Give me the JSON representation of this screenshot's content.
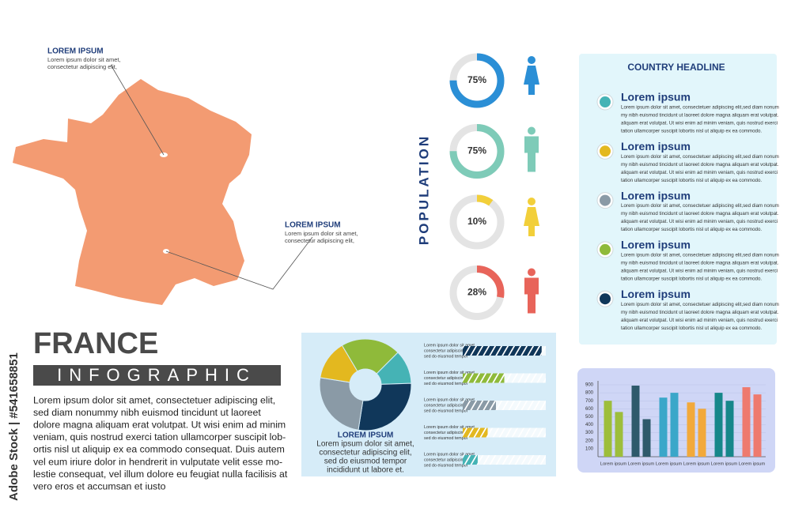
{
  "side_label": "Adobe Stock | #541658851",
  "map": {
    "callouts": [
      {
        "title": "LOREM IPSUM",
        "text": [
          "Lorem ipsum dolor sit amet,",
          "consectetur adipiscing elit,"
        ]
      },
      {
        "title": "LOREM IPSUM",
        "text": [
          "Lorem ipsum dolor sit amet,",
          "consectetur adipiscing elit,"
        ]
      }
    ]
  },
  "title": {
    "country": "FRANCE",
    "subtitle": "INFOGRAPHIC",
    "paragraph": [
      "Lorem ipsum dolor sit amet, consectetuer adipiscing elit,",
      "sed diam nonummy nibh euismod tincidunt  ut laoreet",
      "dolore magna aliquam erat volutpat.  Ut wisi enim ad minim",
      "veniam, quis nostrud exerci tation  ullamcorper suscipit lob-",
      "ortis nisl ut aliquip ex ea commodo consequat. Duis autem",
      "vel eum iriure dolor in hendrerit in vulputate velit esse mo-",
      "lestie consequat, vel illum dolore eu feugiat nulla facilisis at",
      "vero eros et accumsan et iusto"
    ]
  },
  "population": {
    "label": "POPULATION",
    "items": [
      {
        "value": 75,
        "label": "75%",
        "color": "#2b8fd6"
      },
      {
        "value": 75,
        "label": "75%",
        "color": "#7ecbb8"
      },
      {
        "value": 10,
        "label": "10%",
        "color": "#f2cf3a"
      },
      {
        "value": 28,
        "label": "28%",
        "color": "#e8645a"
      }
    ]
  },
  "headline": {
    "title": "COUNTRY HEADLINE",
    "items": [
      {
        "color": "#45b3b5",
        "heading": "Lorem ipsum",
        "text": [
          "Lorem ipsum dolor sit amet, consectetuer adipiscing elit,sed diam nonum",
          "my nibh euismod tincidunt ut laoreet dolore magna aliquam erat volutpat.",
          "aliquam erat volutpat. Ut wisi enim ad minim veniam, quis nostrud exerci",
          "tation ullamcorper suscipit lobortis nisl ut aliquip ex ea commodo."
        ]
      },
      {
        "color": "#e3b81f",
        "heading": "Lorem ipsum",
        "text": [
          "Lorem ipsum dolor sit amet, consectetuer adipiscing elit,sed diam nonum",
          "my nibh euismod tincidunt ut laoreet dolore magna aliquam erat volutpat.",
          "aliquam erat volutpat. Ut wisi enim ad minim veniam, quis nostrud exerci",
          "tation ullamcorper suscipit lobortis nisl ut aliquip ex ea commodo."
        ]
      },
      {
        "color": "#8a9aa6",
        "heading": "Lorem ipsum",
        "text": [
          "Lorem ipsum dolor sit amet, consectetuer adipiscing elit,sed diam nonum",
          "my nibh euismod tincidunt ut laoreet dolore magna aliquam erat volutpat.",
          "aliquam erat volutpat. Ut wisi enim ad minim veniam, quis nostrud exerci",
          "tation ullamcorper suscipit lobortis nisl ut aliquip ex ea commodo."
        ]
      },
      {
        "color": "#8fba3a",
        "heading": "Lorem ipsum",
        "text": [
          "Lorem ipsum dolor sit amet, consectetuer adipiscing elit,sed diam nonum",
          "my nibh euismod tincidunt ut laoreet dolore magna aliquam erat volutpat.",
          "aliquam erat volutpat. Ut wisi enim ad minim veniam, quis nostrud exerci",
          "tation ullamcorper suscipit lobortis nisl ut aliquip ex ea commodo."
        ]
      },
      {
        "color": "#10375a",
        "heading": "Lorem ipsum",
        "text": [
          "Lorem ipsum dolor sit amet, consectetuer adipiscing elit,sed diam nonum",
          "my nibh euismod tincidunt ut laoreet dolore magna aliquam erat volutpat.",
          "aliquam erat volutpat. Ut wisi enim ad minim veniam, quis nostrud exerci",
          "tation ullamcorper suscipit lobortis nisl ut aliquip ex ea commodo."
        ]
      }
    ]
  },
  "pie_panel": {
    "segments": [
      {
        "value": 12,
        "color": "#45b3b5"
      },
      {
        "value": 28,
        "color": "#10375a"
      },
      {
        "value": 25,
        "color": "#8a9aa6"
      },
      {
        "value": 14,
        "color": "#e3b81f"
      },
      {
        "value": 21,
        "color": "#8fba3a"
      }
    ],
    "title": "LOREM IPSUM",
    "text": [
      "Lorem ipsum dolor sit amet,",
      "consectetur adipiscing elit,",
      "sed do eiusmod tempor",
      "incididunt ut labore et."
    ],
    "xlim": [
      0,
      100
    ],
    "bars": [
      {
        "value": 95,
        "color": "#10375a",
        "text": [
          "Lorem ipsum dolor sit amet,",
          "consectetur adipiscing elit,",
          "sed do eiusmod tempor"
        ]
      },
      {
        "value": 50,
        "color": "#8fba3a",
        "text": [
          "Lorem ipsum dolor sit amet,",
          "consectetur adipiscing elit,",
          "sed do eiusmod tempor"
        ]
      },
      {
        "value": 40,
        "color": "#8a9aa6",
        "text": [
          "Lorem ipsum dolor sit amet,",
          "consectetur adipiscing elit,",
          "sed do eiusmod tempor"
        ]
      },
      {
        "value": 30,
        "color": "#e3b81f",
        "text": [
          "Lorem ipsum dolor sit amet,",
          "consectetur adipiscing elit,",
          "sed do eiusmod tempor"
        ]
      },
      {
        "value": 18,
        "color": "#45b3b5",
        "text": [
          "Lorem ipsum dolor sit amet,",
          "consectetur adipiscing elit,",
          "sed do eiusmod tempor"
        ]
      }
    ]
  },
  "chart_data": {
    "type": "bar",
    "categories": [
      "Lorem ipsum",
      "Lorem ipsum",
      "Lorem ipsum",
      "Lorem ipsum",
      "Lorem ipsum",
      "Lorem ipsum"
    ],
    "colors": [
      "#9dbe3b",
      "#2e5a6b",
      "#3ba7c9",
      "#f2a93b",
      "#16878a",
      "#ee7a6e"
    ],
    "series": [
      {
        "values": [
          700,
          890,
          740,
          680,
          800,
          870
        ]
      },
      {
        "values": [
          560,
          470,
          800,
          600,
          700,
          780
        ]
      }
    ],
    "ylim": [
      0,
      900
    ],
    "yticks": [
      100,
      200,
      300,
      400,
      500,
      600,
      700,
      800,
      900
    ],
    "grid": true
  }
}
